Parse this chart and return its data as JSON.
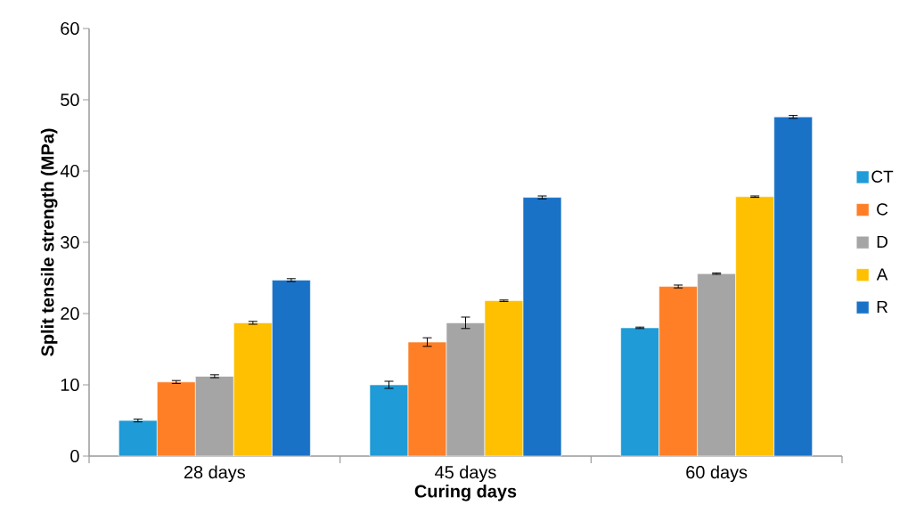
{
  "chart_data": {
    "type": "bar",
    "xlabel": "Curing days",
    "ylabel": "Split tensile strength (MPa)",
    "categories": [
      "28 days",
      "45 days",
      "60 days"
    ],
    "series": [
      {
        "name": "CT",
        "color": "#1f9bd7",
        "values": [
          5.0,
          10.0,
          18.0
        ],
        "errors": [
          0.2,
          0.5,
          0.1
        ]
      },
      {
        "name": "C",
        "color": "#fe7f26",
        "values": [
          10.4,
          16.0,
          23.8
        ],
        "errors": [
          0.2,
          0.6,
          0.2
        ]
      },
      {
        "name": "D",
        "color": "#a5a5a5",
        "values": [
          11.2,
          18.7,
          25.6
        ],
        "errors": [
          0.2,
          0.8,
          0.1
        ]
      },
      {
        "name": "A",
        "color": "#fec000",
        "values": [
          18.7,
          21.8,
          36.4
        ],
        "errors": [
          0.2,
          0.1,
          0.1
        ]
      },
      {
        "name": "R",
        "color": "#1a72c7",
        "values": [
          24.7,
          36.3,
          47.6
        ],
        "errors": [
          0.2,
          0.2,
          0.2
        ]
      }
    ],
    "ylim": [
      0,
      60
    ],
    "yticks": [
      0,
      10,
      20,
      30,
      40,
      50,
      60
    ],
    "grid": false,
    "legend": "right"
  }
}
